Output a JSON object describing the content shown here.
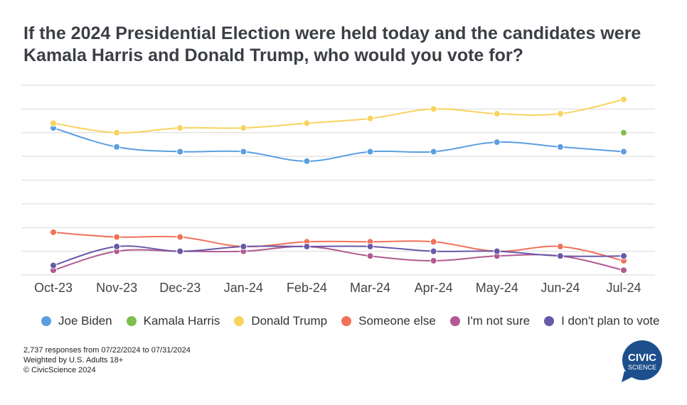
{
  "title": "If the 2024 Presidential Election were held today and the candidates were Kamala Harris and Donald Trump, who would you vote for?",
  "chart_data": {
    "type": "line",
    "categories": [
      "Oct-23",
      "Nov-23",
      "Dec-23",
      "Jan-24",
      "Feb-24",
      "Mar-24",
      "Apr-24",
      "May-24",
      "Jun-24",
      "Jul-24"
    ],
    "ylim": [
      0,
      40
    ],
    "grid": true,
    "legend_position": "bottom",
    "series": [
      {
        "name": "Joe Biden",
        "color": "#5b9ee1",
        "values": [
          31,
          27,
          26,
          26,
          24,
          26,
          26,
          28,
          27,
          26
        ]
      },
      {
        "name": "Kamala Harris",
        "color": "#7fbf4d",
        "values": [
          null,
          null,
          null,
          null,
          null,
          null,
          null,
          null,
          null,
          30
        ]
      },
      {
        "name": "Donald Trump",
        "color": "#f8d35e",
        "values": [
          32,
          30,
          31,
          31,
          32,
          33,
          35,
          34,
          34,
          37
        ]
      },
      {
        "name": "Someone else",
        "color": "#f2715a",
        "values": [
          9,
          8,
          8,
          6,
          7,
          7,
          7,
          5,
          6,
          3
        ]
      },
      {
        "name": "I'm not sure",
        "color": "#b25a91",
        "values": [
          1,
          5,
          5,
          5,
          6,
          4,
          3,
          4,
          4,
          1
        ]
      },
      {
        "name": "I don't plan to vote",
        "color": "#6a58a8",
        "values": [
          2,
          6,
          5,
          6,
          6,
          6,
          5,
          5,
          4,
          4
        ]
      }
    ]
  },
  "footnote": {
    "line1": "2,737 responses from 07/22/2024 to 07/31/2024",
    "line2": "Weighted by U.S. Adults 18+",
    "line3": "© CivicScience 2024"
  },
  "logo": {
    "line1": "CIVIC",
    "line2": "SCIENCE",
    "color": "#1d4f8c"
  }
}
